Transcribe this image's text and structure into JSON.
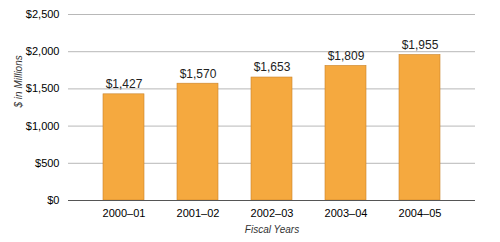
{
  "chart_data": {
    "type": "bar",
    "x_label": "Fiscal Years",
    "y_label": "$ in Millions",
    "categories": [
      "2000–01",
      "2001–02",
      "2002–03",
      "2003–04",
      "2004–05"
    ],
    "values": [
      1427,
      1570,
      1653,
      1809,
      1955
    ],
    "value_labels": [
      "$1,427",
      "$1,570",
      "$1,653",
      "$1,809",
      "$1,955"
    ],
    "data_labels": true,
    "color": "#f5a93f",
    "ylim": [
      0,
      2500
    ],
    "yticks": [
      {
        "value": 0,
        "label": "$0"
      },
      {
        "value": 500,
        "label": "$500"
      },
      {
        "value": 1000,
        "label": "$1,000"
      },
      {
        "value": 1500,
        "label": "$1,500"
      },
      {
        "value": 2000,
        "label": "$2,000"
      },
      {
        "value": 2500,
        "label": "$2,500"
      }
    ],
    "grid": true
  }
}
